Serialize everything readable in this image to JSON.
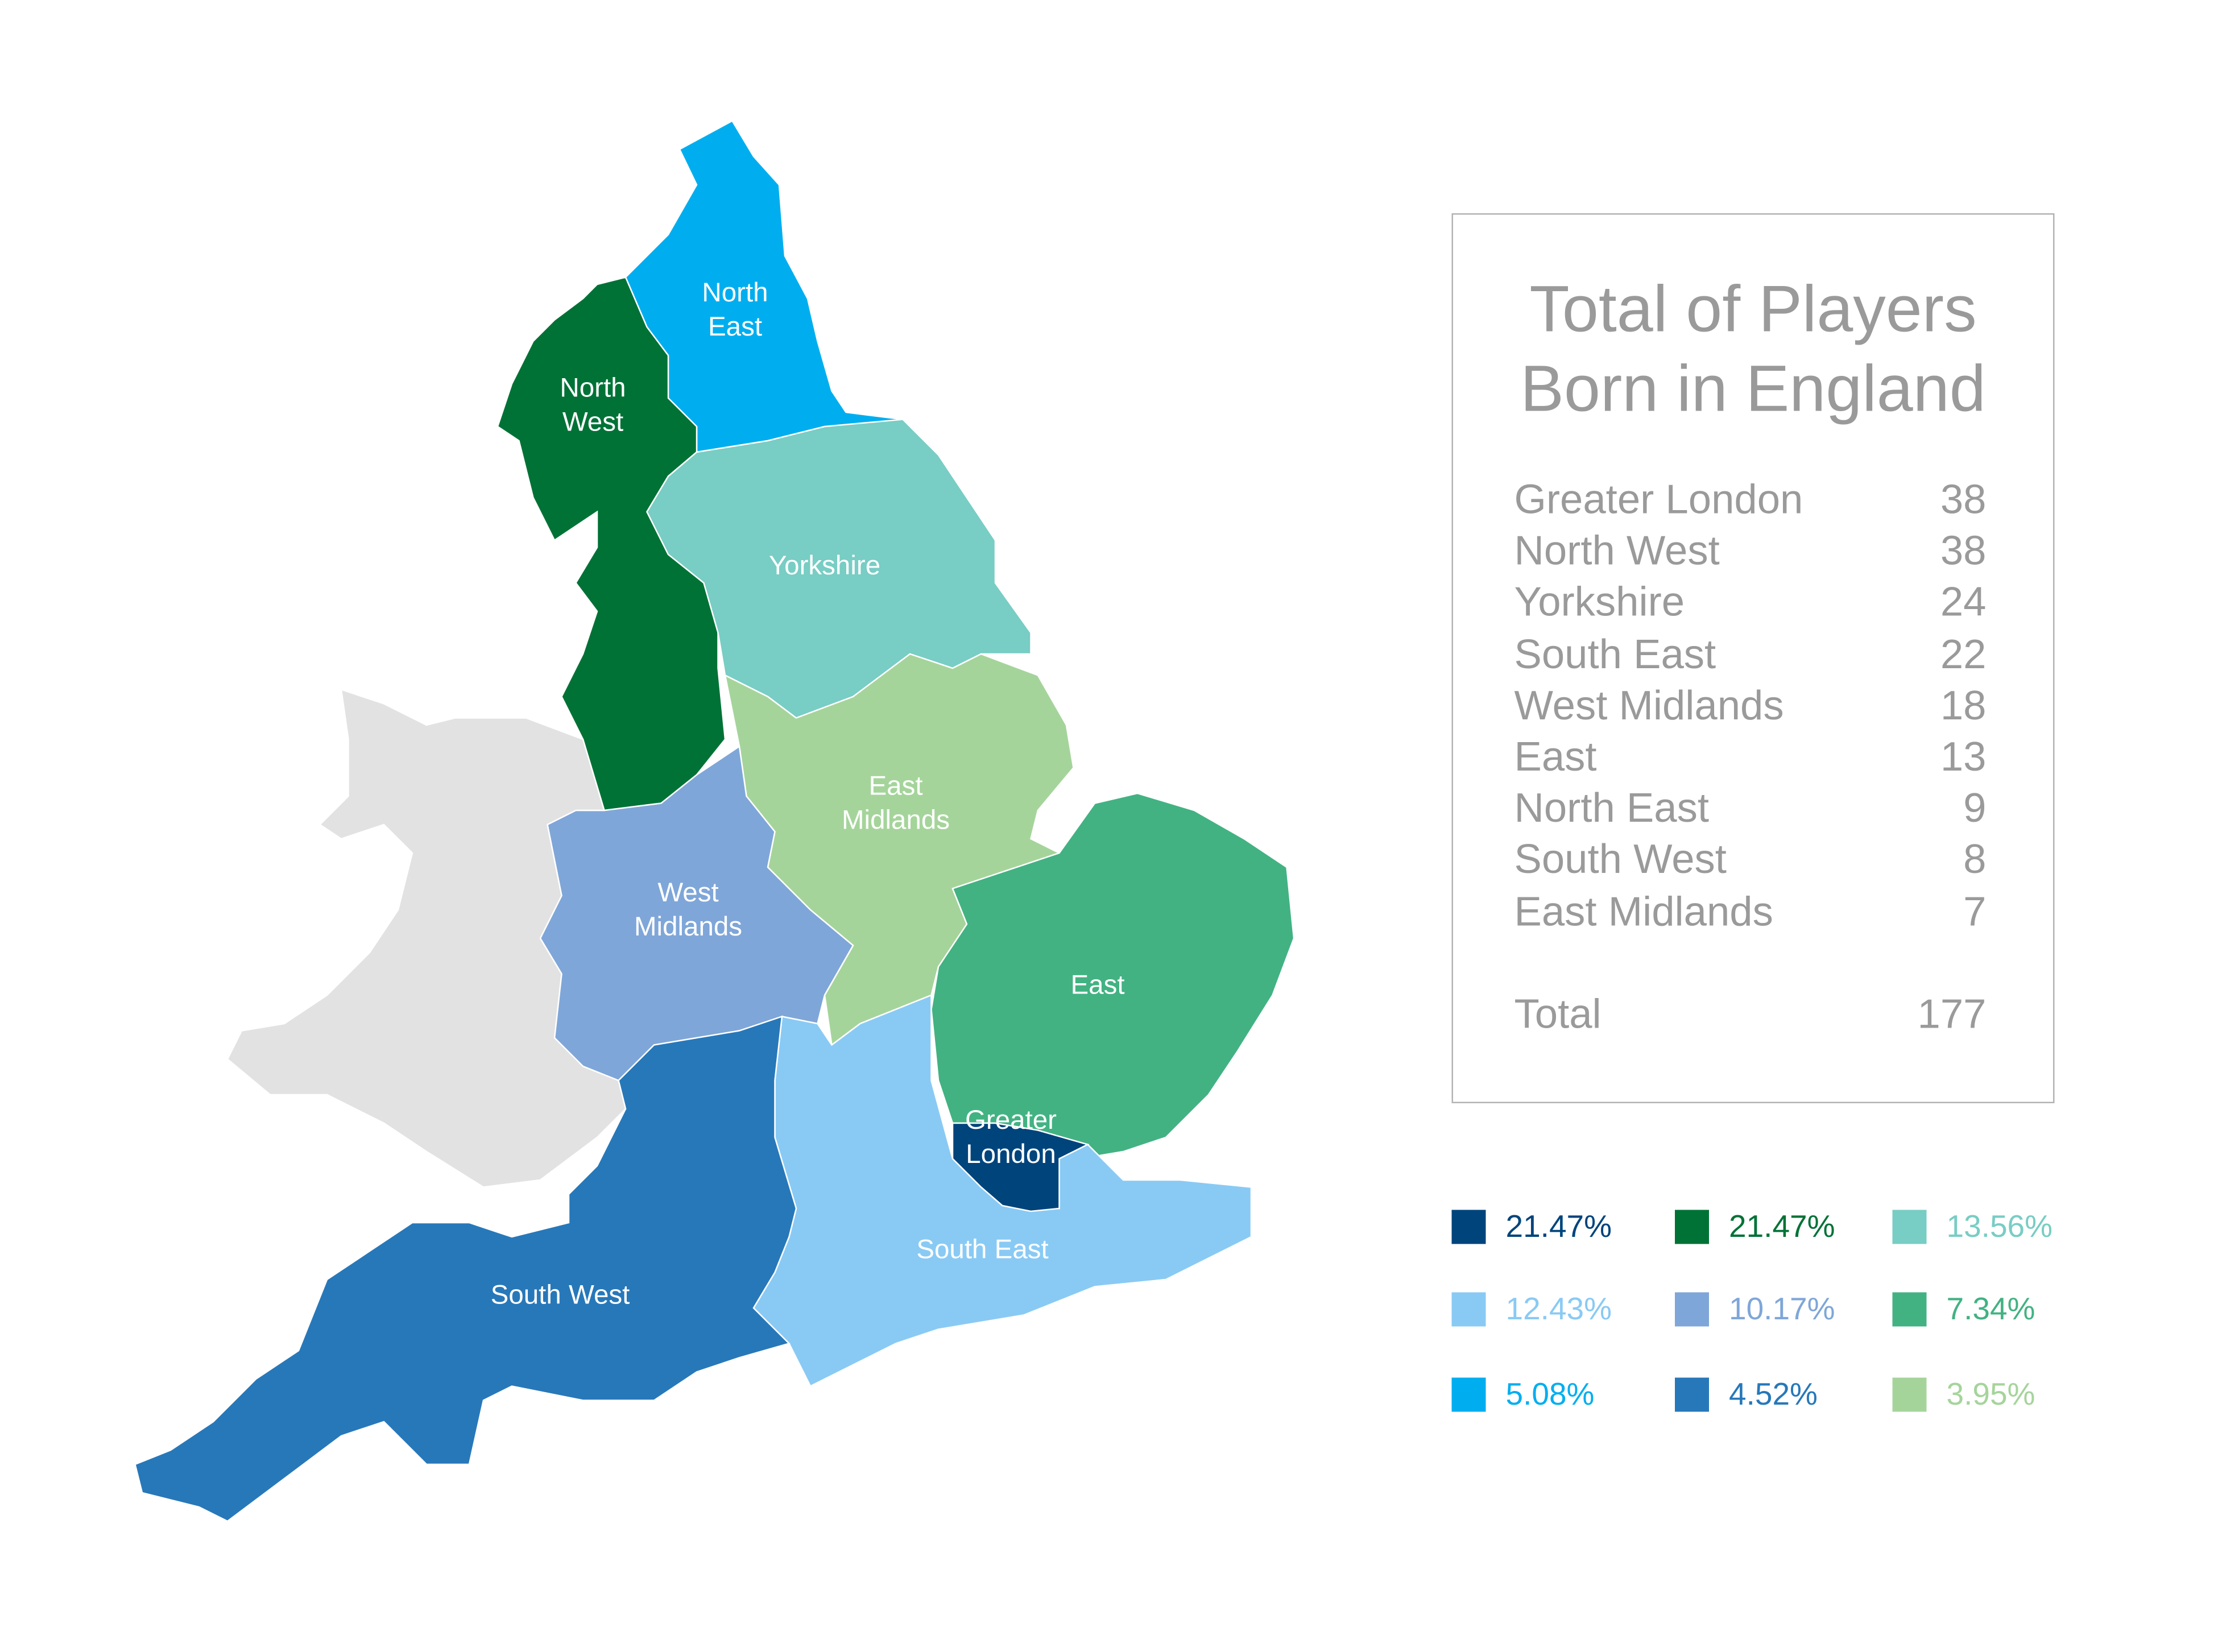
{
  "chart_data": {
    "type": "choropleth-map",
    "regions": [
      {
        "id": "north-east",
        "label": "North East",
        "label_lines": [
          "North",
          "East"
        ],
        "color": "#00aeef",
        "players": 9
      },
      {
        "id": "north-west",
        "label": "North West",
        "label_lines": [
          "North",
          "West"
        ],
        "color": "#007236",
        "players": 38
      },
      {
        "id": "yorkshire",
        "label": "Yorkshire",
        "label_lines": [
          "Yorkshire"
        ],
        "color": "#78cdc4",
        "players": 24
      },
      {
        "id": "east-midlands",
        "label": "East Midlands",
        "label_lines": [
          "East",
          "Midlands"
        ],
        "color": "#a5d49b",
        "players": 7
      },
      {
        "id": "west-midlands",
        "label": "West Midlands",
        "label_lines": [
          "West",
          "Midlands"
        ],
        "color": "#7fa6d8",
        "players": 18
      },
      {
        "id": "east",
        "label": "East",
        "label_lines": [
          "East"
        ],
        "color": "#42b282",
        "players": 13
      },
      {
        "id": "south-east",
        "label": "South East",
        "label_lines": [
          "South East"
        ],
        "color": "#89caf4",
        "players": 22
      },
      {
        "id": "greater-london",
        "label": "Greater London",
        "label_lines": [
          "Greater",
          "London"
        ],
        "color": "#00447c",
        "players": 38
      },
      {
        "id": "south-west",
        "label": "South West",
        "label_lines": [
          "South West"
        ],
        "color": "#2778b9",
        "players": 8
      },
      {
        "id": "wales",
        "label": "",
        "label_lines": [],
        "color": "#e2e2e2",
        "players": null
      }
    ]
  },
  "panel": {
    "title_lines": [
      "Total of Players",
      "Born in England"
    ],
    "rows": [
      {
        "name": "Greater London",
        "value": "38"
      },
      {
        "name": "North West",
        "value": "38"
      },
      {
        "name": "Yorkshire",
        "value": "24"
      },
      {
        "name": "South East",
        "value": "22"
      },
      {
        "name": "West Midlands",
        "value": "18"
      },
      {
        "name": "East",
        "value": "13"
      },
      {
        "name": "North East",
        "value": "9"
      },
      {
        "name": "South West",
        "value": "8"
      },
      {
        "name": "East Midlands",
        "value": "7"
      }
    ],
    "total": {
      "name": "Total",
      "value": "177"
    }
  },
  "legend": [
    {
      "text": "21.47%",
      "color": "#00447c"
    },
    {
      "text": "21.47%",
      "color": "#007236"
    },
    {
      "text": "13.56%",
      "color": "#78cdc4"
    },
    {
      "text": "12.43%",
      "color": "#89caf4"
    },
    {
      "text": "10.17%",
      "color": "#7fa6d8"
    },
    {
      "text": "7.34%",
      "color": "#42b282"
    },
    {
      "text": "5.08%",
      "color": "#00aeef"
    },
    {
      "text": "4.52%",
      "color": "#2778b9"
    },
    {
      "text": "3.95%",
      "color": "#a5d49b"
    }
  ]
}
